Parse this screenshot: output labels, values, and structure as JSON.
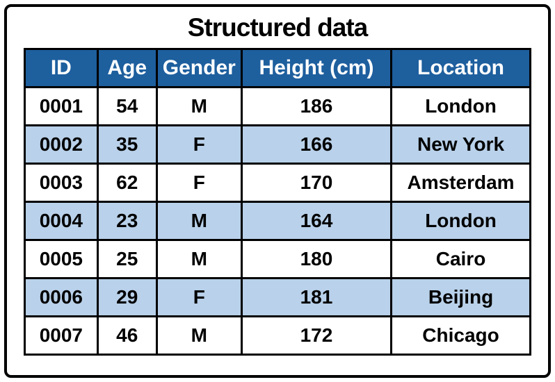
{
  "title": "Structured data",
  "colors": {
    "header_bg": "#1e5f9e",
    "header_text": "#ffffff",
    "row_alt_bg": "#b9d1ea",
    "row_bg": "#ffffff",
    "border": "#000000"
  },
  "chart_data": {
    "type": "table",
    "title": "Structured data",
    "columns": [
      "ID",
      "Age",
      "Gender",
      "Height (cm)",
      "Location"
    ],
    "rows": [
      [
        "0001",
        "54",
        "M",
        "186",
        "London"
      ],
      [
        "0002",
        "35",
        "F",
        "166",
        "New York"
      ],
      [
        "0003",
        "62",
        "F",
        "170",
        "Amsterdam"
      ],
      [
        "0004",
        "23",
        "M",
        "164",
        "London"
      ],
      [
        "0005",
        "25",
        "M",
        "180",
        "Cairo"
      ],
      [
        "0006",
        "29",
        "F",
        "181",
        "Beijing"
      ],
      [
        "0007",
        "46",
        "M",
        "172",
        "Chicago"
      ]
    ]
  }
}
